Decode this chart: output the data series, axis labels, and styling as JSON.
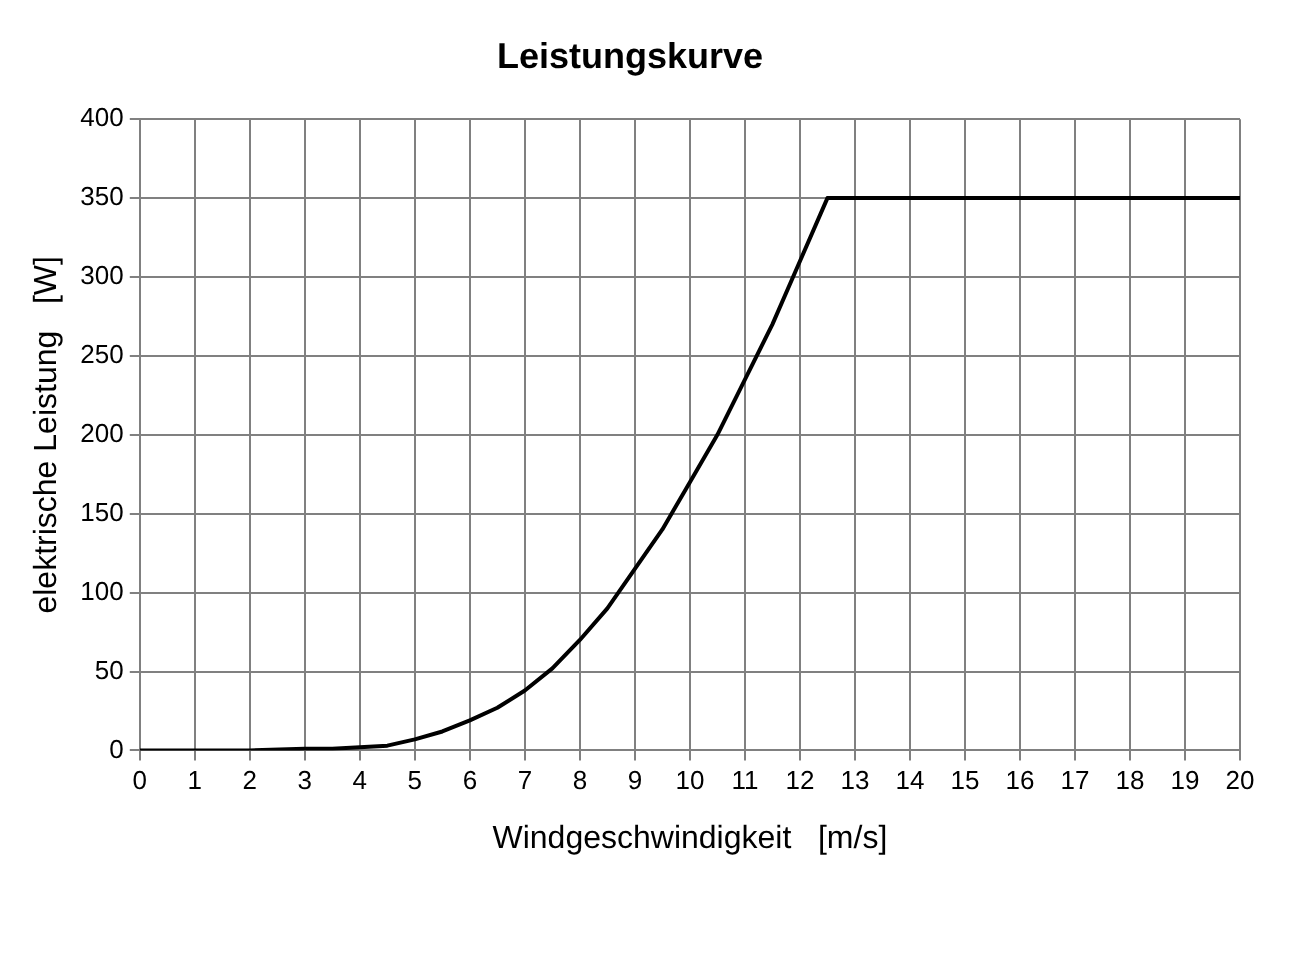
{
  "chart_data": {
    "type": "line",
    "title": "Leistungskurve",
    "xlabel": "Windgeschwindigkeit   [m/s]",
    "ylabel": "elektrische Leistung   [W]",
    "x": [
      0,
      1,
      2,
      3,
      3.5,
      4,
      4.5,
      5,
      5.5,
      6,
      6.5,
      7,
      7.5,
      8,
      8.5,
      9,
      9.5,
      10,
      10.5,
      11,
      11.5,
      12,
      12.5,
      20
    ],
    "series": [
      {
        "color": "#000000",
        "values": [
          0,
          0,
          0,
          1,
          1,
          2,
          3,
          7,
          12,
          19,
          27,
          38,
          52,
          70,
          90,
          115,
          140,
          170,
          200,
          235,
          270,
          310,
          350,
          350
        ]
      }
    ],
    "xlim": [
      0,
      20
    ],
    "xticks": [
      0,
      1,
      2,
      3,
      4,
      5,
      6,
      7,
      8,
      9,
      10,
      11,
      12,
      13,
      14,
      15,
      16,
      17,
      18,
      19,
      20
    ],
    "ylim": [
      0,
      400
    ],
    "yticks": [
      0,
      50,
      100,
      150,
      200,
      250,
      300,
      350,
      400
    ],
    "grid": true,
    "legend": false,
    "marker": "none",
    "line_style": "solid"
  }
}
